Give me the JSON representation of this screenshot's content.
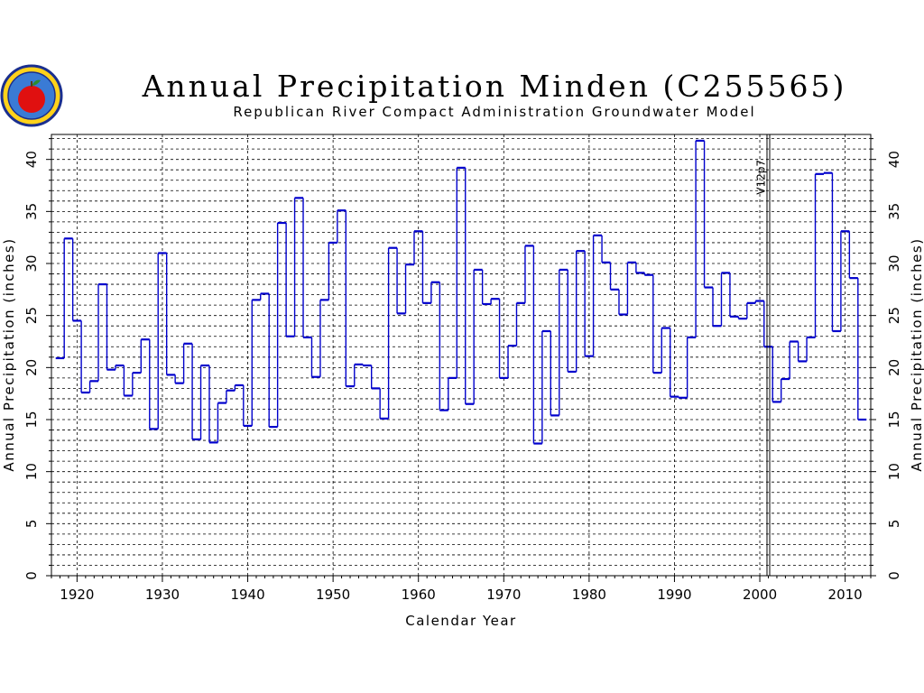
{
  "chart_data": {
    "type": "line",
    "style": "step",
    "title": "Annual Precipitation Minden (C255565)",
    "subtitle": "Republican River Compact Administration Groundwater Model",
    "xlabel": "Calendar Year",
    "ylabel": "Annual Precipitation (inches)",
    "ylabel_right": "Annual Precipitation (inches)",
    "xlim": [
      1917,
      2013
    ],
    "ylim": [
      0,
      42.4
    ],
    "x_ticks": [
      "1920",
      "1930",
      "1940",
      "1950",
      "1960",
      "1970",
      "1980",
      "1990",
      "2000",
      "2010"
    ],
    "y_ticks": [
      "0",
      "5",
      "10",
      "15",
      "20",
      "25",
      "30",
      "35",
      "40"
    ],
    "grid": true,
    "annotation": {
      "label": "V12p7",
      "x": 2001
    },
    "series": [
      {
        "color": "#0000cc",
        "x": [
          1918,
          1919,
          1920,
          1921,
          1922,
          1923,
          1924,
          1925,
          1926,
          1927,
          1928,
          1929,
          1930,
          1931,
          1932,
          1933,
          1934,
          1935,
          1936,
          1937,
          1938,
          1939,
          1940,
          1941,
          1942,
          1943,
          1944,
          1945,
          1946,
          1947,
          1948,
          1949,
          1950,
          1951,
          1952,
          1953,
          1954,
          1955,
          1956,
          1957,
          1958,
          1959,
          1960,
          1961,
          1962,
          1963,
          1964,
          1965,
          1966,
          1967,
          1968,
          1969,
          1970,
          1971,
          1972,
          1973,
          1974,
          1975,
          1976,
          1977,
          1978,
          1979,
          1980,
          1981,
          1982,
          1983,
          1984,
          1985,
          1986,
          1987,
          1988,
          1989,
          1990,
          1991,
          1992,
          1993,
          1994,
          1995,
          1996,
          1997,
          1998,
          1999,
          2000,
          2001,
          2002,
          2003,
          2004,
          2005,
          2006,
          2007,
          2008,
          2009,
          2010,
          2011,
          2012
        ],
        "values": [
          20.9,
          32.4,
          24.5,
          17.6,
          18.7,
          28.0,
          19.8,
          20.2,
          17.3,
          19.5,
          22.7,
          14.1,
          31.0,
          19.3,
          18.5,
          22.3,
          13.1,
          20.2,
          12.8,
          16.6,
          17.8,
          18.3,
          14.4,
          26.5,
          27.1,
          14.3,
          33.9,
          23.0,
          36.3,
          22.9,
          19.1,
          26.5,
          32.0,
          35.1,
          18.2,
          20.3,
          20.2,
          18.0,
          15.1,
          31.5,
          25.2,
          29.9,
          33.1,
          26.2,
          28.2,
          15.9,
          19.0,
          39.2,
          16.5,
          29.4,
          26.1,
          26.6,
          19.0,
          22.1,
          26.2,
          31.7,
          12.7,
          23.5,
          15.4,
          29.4,
          19.6,
          31.2,
          21.1,
          32.7,
          30.1,
          27.5,
          25.1,
          30.1,
          29.1,
          28.9,
          19.5,
          23.8,
          17.2,
          17.1,
          22.9,
          41.8,
          27.7,
          24.0,
          29.1,
          24.9,
          24.7,
          26.2,
          26.4,
          22.0,
          16.7,
          18.9,
          22.5,
          20.6,
          22.9,
          38.6,
          38.7,
          23.5,
          33.1,
          28.6,
          15.0
        ]
      }
    ]
  }
}
